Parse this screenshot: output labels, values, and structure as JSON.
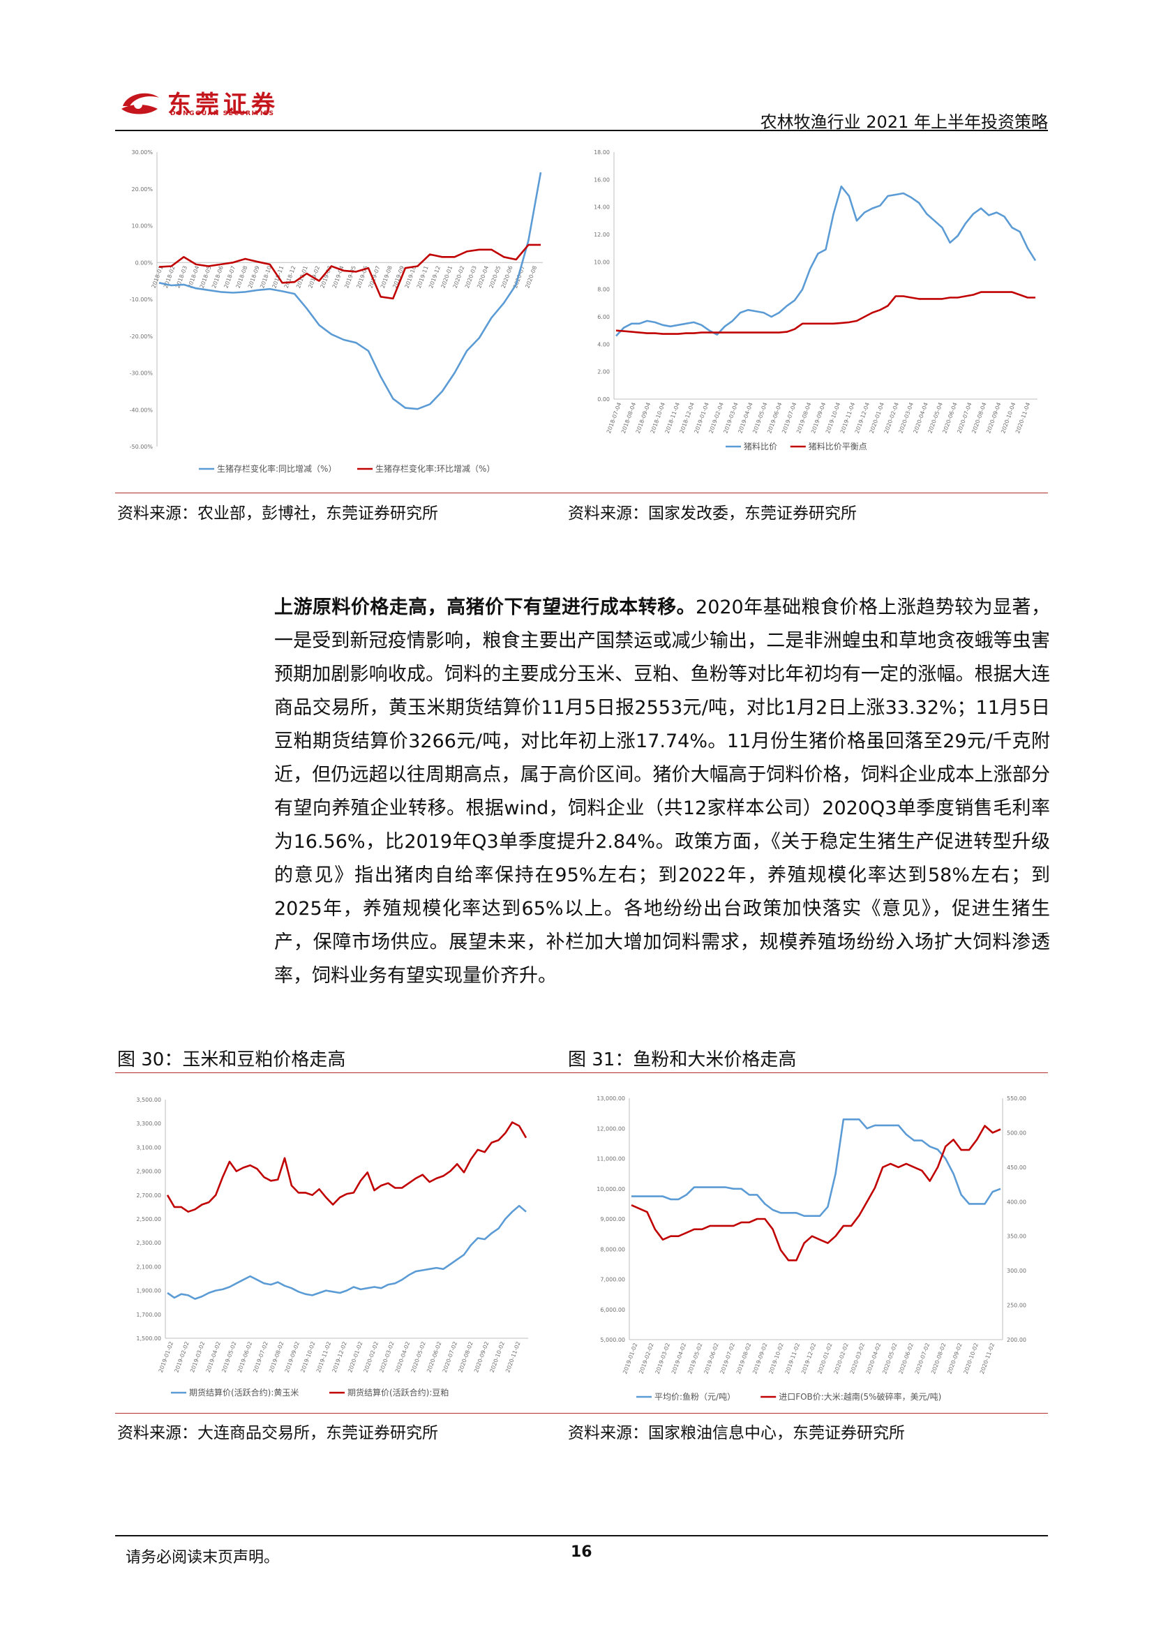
{
  "header": {
    "logo_cn": "东莞证券",
    "logo_en": "DONGGUAN SECURITIES",
    "report_title": "农林牧渔行业 2021 年上半年投资策略",
    "brand_color": "#c4161c"
  },
  "top_figures": {
    "left_source": "资料来源：农业部，彭博社，东莞证券研究所",
    "right_source": "资料来源：国家发改委，东莞证券研究所"
  },
  "body": {
    "lead": "上游原料价格走高，高猪价下有望进行成本转移。",
    "text": "2020年基础粮食价格上涨趋势较为显著，一是受到新冠疫情影响，粮食主要出产国禁运或减少输出，二是非洲蝗虫和草地贪夜蛾等虫害预期加剧影响收成。饲料的主要成分玉米、豆粕、鱼粉等对比年初均有一定的涨幅。根据大连商品交易所，黄玉米期货结算价11月5日报2553元/吨，对比1月2日上涨33.32%；11月5日豆粕期货结算价3266元/吨，对比年初上涨17.74%。11月份生猪价格虽回落至29元/千克附近，但仍远超以往周期高点，属于高价区间。猪价大幅高于饲料价格，饲料企业成本上涨部分有望向养殖企业转移。根据wind，饲料企业（共12家样本公司）2020Q3单季度销售毛利率为16.56%，比2019年Q3单季度提升2.84%。政策方面，《关于稳定生猪生产促进转型升级的意见》指出猪肉自给率保持在95%左右；到2022年，养殖规模化率达到58%左右；到2025年，养殖规模化率达到65%以上。各地纷纷出台政策加快落实《意见》，促进生猪生产，保障市场供应。展望未来，补栏加大增加饲料需求，规模养殖场纷纷入场扩大饲料渗透率，饲料业务有望实现量价齐升。"
  },
  "bottom_figures": {
    "left_title": "图 30：玉米和豆粕价格走高",
    "right_title": "图 31：鱼粉和大米价格走高",
    "left_source": "资料来源：大连商品交易所，东莞证券研究所",
    "right_source": "资料来源：国家粮油信息中心，东莞证券研究所"
  },
  "footer": {
    "disclaimer": "请务必阅读末页声明。",
    "page_number": "16"
  },
  "chart_data": [
    {
      "type": "line",
      "ylim": [
        -50,
        30
      ],
      "yticks": [
        "30.00%",
        "20.00%",
        "10.00%",
        "0.00%",
        "-10.00%",
        "-20.00%",
        "-30.00%",
        "-40.00%",
        "-50.00%"
      ],
      "ytick_values": [
        30,
        20,
        10,
        0,
        -10,
        -20,
        -30,
        -40,
        -50
      ],
      "categories": [
        "2018-01",
        "2018-02",
        "2018-03",
        "2018-04",
        "2018-05",
        "2018-06",
        "2018-07",
        "2018-08",
        "2018-09",
        "2018-10",
        "2018-11",
        "2018-12",
        "2019-01",
        "2019-02",
        "2019-03",
        "2019-04",
        "2019-05",
        "2019-06",
        "2019-07",
        "2019-08",
        "2019-09",
        "2019-10",
        "2019-11",
        "2019-12",
        "2020-01",
        "2020-02",
        "2020-03",
        "2020-04",
        "2020-05",
        "2020-06",
        "2020-07",
        "2020-08"
      ],
      "series": [
        {
          "name": "生猪存栏变化率:同比增减（%）",
          "color": "#5b9bd5",
          "values": [
            -5.5,
            -6.2,
            -6.0,
            -7.0,
            -7.5,
            -8.0,
            -8.2,
            -8.0,
            -7.5,
            -7.2,
            -7.8,
            -8.5,
            -12.5,
            -17.0,
            -19.5,
            -21.0,
            -21.8,
            -24.0,
            -31.0,
            -37.0,
            -39.5,
            -39.8,
            -38.5,
            -35.0,
            -30.0,
            -24.0,
            -20.5,
            -15.0,
            -11.0,
            -6.0,
            6.0,
            24.5
          ]
        },
        {
          "name": "生猪存栏变化率:环比增减（%）",
          "color": "#c00000",
          "values": [
            -1.2,
            -1.0,
            1.5,
            -0.5,
            -1.0,
            -0.5,
            0.0,
            1.0,
            0.2,
            -0.5,
            -5.5,
            -5.3,
            -3.0,
            -5.0,
            -1.0,
            -2.2,
            -2.5,
            -1.5,
            -9.3,
            -9.8,
            -1.5,
            -1.0,
            2.2,
            1.5,
            1.5,
            3.0,
            3.5,
            3.5,
            1.5,
            0.8,
            4.8,
            4.8
          ]
        }
      ]
    },
    {
      "type": "line",
      "ylim": [
        0,
        18
      ],
      "yticks": [
        "18.00",
        "16.00",
        "14.00",
        "12.00",
        "10.00",
        "8.00",
        "6.00",
        "4.00",
        "2.00",
        "0.00"
      ],
      "ytick_values": [
        18,
        16,
        14,
        12,
        10,
        8,
        6,
        4,
        2,
        0
      ],
      "xticks": [
        "2018-07-04",
        "2018-08-04",
        "2018-09-04",
        "2018-10-04",
        "2018-11-04",
        "2018-12-04",
        "2019-01-04",
        "2019-02-04",
        "2019-03-04",
        "2019-04-04",
        "2019-05-04",
        "2019-06-04",
        "2019-07-04",
        "2019-08-04",
        "2019-09-04",
        "2019-10-04",
        "2019-11-04",
        "2019-12-04",
        "2020-01-04",
        "2020-02-04",
        "2020-03-04",
        "2020-04-04",
        "2020-05-04",
        "2020-06-04",
        "2020-07-04",
        "2020-08-04",
        "2020-09-04",
        "2020-10-04",
        "2020-11-04"
      ],
      "series": [
        {
          "name": "猪料比价",
          "color": "#5b9bd5",
          "values": [
            4.6,
            5.2,
            5.5,
            5.5,
            5.7,
            5.6,
            5.4,
            5.3,
            5.4,
            5.5,
            5.6,
            5.4,
            5.0,
            4.7,
            5.3,
            5.7,
            6.3,
            6.5,
            6.4,
            6.3,
            6.0,
            6.3,
            6.8,
            7.2,
            8.0,
            9.5,
            10.6,
            10.9,
            13.5,
            15.5,
            14.8,
            13.0,
            13.6,
            13.9,
            14.1,
            14.8,
            14.9,
            15.0,
            14.7,
            14.3,
            13.5,
            13.0,
            12.5,
            11.4,
            11.9,
            12.8,
            13.5,
            13.9,
            13.4,
            13.6,
            13.3,
            12.5,
            12.2,
            11.0,
            10.1
          ]
        },
        {
          "name": "猪料比价平衡点",
          "color": "#c00000",
          "values": [
            5.0,
            4.95,
            4.9,
            4.85,
            4.8,
            4.8,
            4.75,
            4.75,
            4.75,
            4.8,
            4.8,
            4.85,
            4.85,
            4.85,
            4.85,
            4.85,
            4.85,
            4.85,
            4.85,
            4.85,
            4.85,
            4.85,
            4.9,
            5.1,
            5.5,
            5.5,
            5.5,
            5.5,
            5.5,
            5.55,
            5.6,
            5.7,
            6.0,
            6.3,
            6.5,
            6.8,
            7.5,
            7.5,
            7.4,
            7.3,
            7.3,
            7.3,
            7.3,
            7.4,
            7.4,
            7.5,
            7.6,
            7.8,
            7.8,
            7.8,
            7.8,
            7.8,
            7.6,
            7.4,
            7.4
          ]
        }
      ]
    },
    {
      "type": "line",
      "ylim": [
        1500,
        3500
      ],
      "yticks": [
        "3,500.00",
        "3,300.00",
        "3,100.00",
        "2,900.00",
        "2,700.00",
        "2,500.00",
        "2,300.00",
        "2,100.00",
        "1,900.00",
        "1,700.00",
        "1,500.00"
      ],
      "ytick_values": [
        3500,
        3300,
        3100,
        2900,
        2700,
        2500,
        2300,
        2100,
        1900,
        1700,
        1500
      ],
      "xticks": [
        "2019-01-02",
        "2019-02-02",
        "2019-03-02",
        "2019-04-02",
        "2019-05-02",
        "2019-06-02",
        "2019-07-02",
        "2019-08-02",
        "2019-09-02",
        "2019-10-02",
        "2019-11-02",
        "2019-12-02",
        "2020-01-02",
        "2020-02-02",
        "2020-03-02",
        "2020-04-02",
        "2020-05-02",
        "2020-06-02",
        "2020-07-02",
        "2020-08-02",
        "2020-09-02",
        "2020-10-02",
        "2020-11-02"
      ],
      "series": [
        {
          "name": "期货结算价(活跃合约):黄玉米",
          "color": "#5b9bd5",
          "values": [
            1880,
            1840,
            1870,
            1860,
            1830,
            1850,
            1880,
            1900,
            1910,
            1930,
            1960,
            1990,
            2020,
            1990,
            1960,
            1950,
            1970,
            1940,
            1920,
            1890,
            1870,
            1860,
            1880,
            1900,
            1890,
            1880,
            1900,
            1930,
            1910,
            1920,
            1930,
            1920,
            1950,
            1960,
            1990,
            2030,
            2060,
            2070,
            2080,
            2090,
            2080,
            2120,
            2160,
            2200,
            2280,
            2340,
            2330,
            2380,
            2420,
            2500,
            2560,
            2610,
            2560
          ]
        },
        {
          "name": "期货结算价(活跃合约):豆粕",
          "color": "#c00000",
          "values": [
            2700,
            2600,
            2600,
            2560,
            2580,
            2620,
            2640,
            2700,
            2850,
            2980,
            2900,
            2930,
            2950,
            2920,
            2850,
            2820,
            2830,
            3010,
            2780,
            2720,
            2720,
            2700,
            2750,
            2680,
            2620,
            2680,
            2710,
            2720,
            2820,
            2890,
            2740,
            2780,
            2800,
            2760,
            2760,
            2800,
            2840,
            2870,
            2810,
            2840,
            2860,
            2900,
            2960,
            2890,
            3000,
            3080,
            3060,
            3140,
            3160,
            3220,
            3310,
            3280,
            3180
          ]
        }
      ]
    },
    {
      "type": "line",
      "ylim": [
        5000,
        13000
      ],
      "y2lim": [
        200,
        550
      ],
      "yticks": [
        "13,000.00",
        "12,000.00",
        "11,000.00",
        "10,000.00",
        "9,000.00",
        "8,000.00",
        "7,000.00",
        "6,000.00",
        "5,000.00"
      ],
      "ytick_values": [
        13000,
        12000,
        11000,
        10000,
        9000,
        8000,
        7000,
        6000,
        5000
      ],
      "y2ticks": [
        "550.00",
        "500.00",
        "450.00",
        "400.00",
        "350.00",
        "300.00",
        "250.00",
        "200.00"
      ],
      "y2tick_values": [
        550,
        500,
        450,
        400,
        350,
        300,
        250,
        200
      ],
      "xticks": [
        "2019-01-02",
        "2019-02-02",
        "2019-03-02",
        "2019-04-02",
        "2019-05-02",
        "2019-06-02",
        "2019-07-02",
        "2019-08-02",
        "2019-09-02",
        "2019-10-02",
        "2019-11-02",
        "2019-12-02",
        "2020-01-02",
        "2020-02-02",
        "2020-03-02",
        "2020-04-02",
        "2020-05-02",
        "2020-06-02",
        "2020-07-02",
        "2020-08-02",
        "2020-09-02",
        "2020-10-02",
        "2020-11-02"
      ],
      "series": [
        {
          "name": "平均价:鱼粉（元/吨）",
          "color": "#5b9bd5",
          "axis": "left",
          "values": [
            9750,
            9750,
            9750,
            9750,
            9750,
            9650,
            9650,
            9800,
            10050,
            10050,
            10050,
            10050,
            10050,
            10000,
            10000,
            9800,
            9800,
            9500,
            9300,
            9200,
            9200,
            9200,
            9100,
            9100,
            9100,
            9400,
            10500,
            12300,
            12300,
            12300,
            12000,
            12100,
            12100,
            12100,
            12100,
            11800,
            11600,
            11600,
            11400,
            11300,
            11000,
            10500,
            9800,
            9500,
            9500,
            9500,
            9900,
            10000
          ]
        },
        {
          "name": "进口FOB价:大米:越南(5%破碎率，美元/吨)",
          "color": "#c00000",
          "axis": "right",
          "values": [
            395,
            390,
            385,
            360,
            345,
            350,
            350,
            355,
            360,
            360,
            365,
            365,
            365,
            365,
            370,
            370,
            375,
            375,
            360,
            330,
            315,
            315,
            340,
            350,
            345,
            340,
            350,
            365,
            365,
            380,
            400,
            420,
            450,
            455,
            450,
            455,
            450,
            445,
            430,
            450,
            480,
            490,
            475,
            475,
            490,
            510,
            500,
            505
          ]
        }
      ]
    }
  ]
}
